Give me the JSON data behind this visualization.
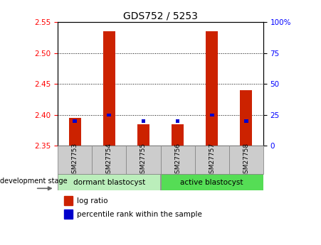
{
  "title": "GDS752 / 5253",
  "samples": [
    "GSM27753",
    "GSM27754",
    "GSM27755",
    "GSM27756",
    "GSM27757",
    "GSM27758"
  ],
  "log_ratio_values": [
    2.395,
    2.535,
    2.385,
    2.385,
    2.535,
    2.44
  ],
  "percentile_values": [
    20,
    25,
    20,
    20,
    25,
    20
  ],
  "y_min": 2.35,
  "y_max": 2.55,
  "y_ticks_left": [
    2.35,
    2.4,
    2.45,
    2.5,
    2.55
  ],
  "y_ticks_right": [
    0,
    25,
    50,
    75,
    100
  ],
  "grid_lines": [
    2.4,
    2.45,
    2.5
  ],
  "bar_color_red": "#cc2200",
  "bar_color_blue": "#0000cc",
  "group1_label": "dormant blastocyst",
  "group2_label": "active blastocyst",
  "group1_color": "#bbeebb",
  "group2_color": "#55dd55",
  "tick_bg_color": "#cccccc",
  "legend_red_label": "log ratio",
  "legend_blue_label": "percentile rank within the sample",
  "dev_stage_label": "development stage",
  "percentile_bar_width": 0.12,
  "red_bar_width": 0.35
}
